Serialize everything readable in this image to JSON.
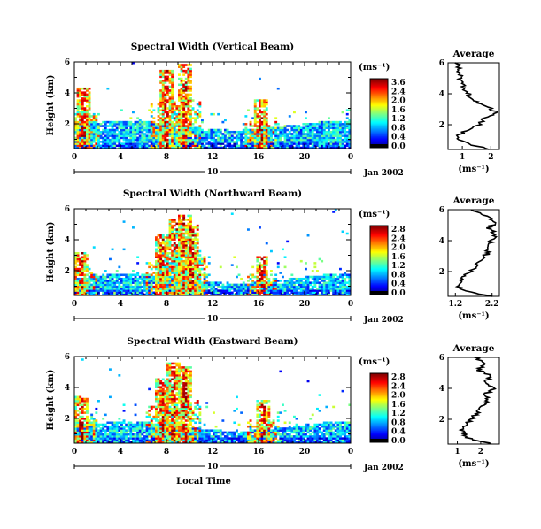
{
  "chart_data": [
    {
      "type": "heatmap",
      "title": "Spectral Width (Vertical Beam)",
      "ylabel": "Height (km)",
      "ylim": [
        0.4,
        6
      ],
      "yticks": [
        "6",
        "4",
        "2"
      ],
      "xlim": [
        0,
        24
      ],
      "xticks": [
        "0",
        "4",
        "8",
        "12",
        "16",
        "20",
        "0"
      ],
      "date_label": "10",
      "date_suffix": "Jan 2002",
      "colorbar": {
        "unit": "(ms⁻¹)",
        "ticks": [
          "3.6",
          "2.4",
          "2.0",
          "1.6",
          "1.2",
          "0.8",
          "0.4",
          "0.0"
        ]
      },
      "bursts": [
        [
          0.8,
          4.4
        ],
        [
          8.0,
          5.5
        ],
        [
          9.6,
          5.9
        ],
        [
          16.2,
          3.6
        ]
      ],
      "avg_panel": {
        "title": "Average",
        "unit": "(ms⁻¹)",
        "xticks": [
          "1",
          "2"
        ],
        "xlim": [
          0.5,
          2.3
        ],
        "yticks": [
          "6",
          "4",
          "2"
        ]
      },
      "avg_profile": {
        "height": [
          0.4,
          0.8,
          1.2,
          1.6,
          2.0,
          2.4,
          2.8,
          3.2,
          3.6,
          4.0,
          4.4,
          4.8,
          5.2,
          5.6,
          6.0
        ],
        "value": [
          1.9,
          1.2,
          0.8,
          1.1,
          1.6,
          1.7,
          2.2,
          1.8,
          1.4,
          1.2,
          1.05,
          0.95,
          0.9,
          0.85,
          0.85
        ]
      }
    },
    {
      "type": "heatmap",
      "title": "Spectral Width (Northward Beam)",
      "ylabel": "Height (km)",
      "ylim": [
        0.4,
        6
      ],
      "yticks": [
        "6",
        "4",
        "2"
      ],
      "xlim": [
        0,
        24
      ],
      "xticks": [
        "0",
        "4",
        "8",
        "12",
        "16",
        "20",
        "0"
      ],
      "date_label": "10",
      "date_suffix": "Jan 2002",
      "colorbar": {
        "unit": "(ms⁻¹)",
        "ticks": [
          "2.8",
          "2.4",
          "2.0",
          "1.6",
          "1.2",
          "0.8",
          "0.4",
          "0.0"
        ]
      },
      "bursts": [
        [
          0.6,
          3.2
        ],
        [
          7.6,
          4.3
        ],
        [
          8.8,
          5.4
        ],
        [
          9.6,
          5.6
        ],
        [
          10.2,
          5.0
        ],
        [
          16.3,
          3.0
        ]
      ],
      "avg_panel": {
        "title": "Average",
        "unit": "(ms⁻¹)",
        "xticks": [
          "1.2",
          "2.2"
        ],
        "xlim": [
          1.0,
          2.4
        ],
        "yticks": [
          "6",
          "4",
          "2"
        ]
      },
      "avg_profile": {
        "height": [
          0.4,
          0.8,
          1.2,
          1.6,
          2.0,
          2.4,
          2.8,
          3.2,
          3.6,
          4.0,
          4.4,
          4.8,
          5.2,
          5.6,
          6.0
        ],
        "value": [
          2.2,
          1.4,
          1.25,
          1.4,
          1.6,
          1.8,
          1.9,
          2.1,
          2.0,
          2.2,
          2.3,
          2.1,
          2.3,
          2.0,
          1.6
        ]
      }
    },
    {
      "type": "heatmap",
      "title": "Spectral Width (Eastward Beam)",
      "ylabel": "Height (km)",
      "ylim": [
        0.4,
        6
      ],
      "yticks": [
        "6",
        "4",
        "2"
      ],
      "xlim": [
        0,
        24
      ],
      "xticks": [
        "0",
        "4",
        "8",
        "12",
        "16",
        "20",
        "0"
      ],
      "xlabel": "Local Time",
      "date_label": "10",
      "date_suffix": "Jan 2002",
      "colorbar": {
        "unit": "(ms⁻¹)",
        "ticks": [
          "2.8",
          "2.4",
          "2.0",
          "1.6",
          "1.2",
          "0.8",
          "0.4",
          "0.0"
        ]
      },
      "bursts": [
        [
          0.6,
          3.4
        ],
        [
          7.6,
          4.6
        ],
        [
          8.6,
          5.6
        ],
        [
          9.6,
          5.4
        ],
        [
          16.4,
          3.2
        ]
      ],
      "avg_panel": {
        "title": "Average",
        "unit": "(ms⁻¹)",
        "xticks": [
          "1",
          "2"
        ],
        "xlim": [
          0.6,
          2.8
        ],
        "yticks": [
          "6",
          "4",
          "2"
        ]
      },
      "avg_profile": {
        "height": [
          0.4,
          0.8,
          1.2,
          1.6,
          2.0,
          2.4,
          2.8,
          3.2,
          3.6,
          4.0,
          4.4,
          4.8,
          5.2,
          5.6,
          6.0
        ],
        "value": [
          2.4,
          1.5,
          1.2,
          1.4,
          1.6,
          1.8,
          2.0,
          2.3,
          2.2,
          2.6,
          2.2,
          2.4,
          1.9,
          2.1,
          1.8
        ]
      }
    }
  ]
}
